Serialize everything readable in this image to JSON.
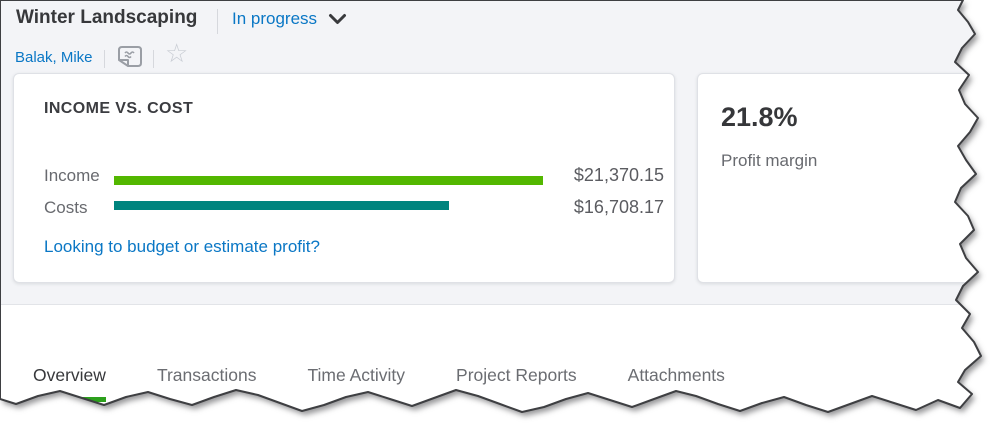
{
  "header": {
    "project_title": "Winter Landscaping",
    "status_label": "In progress",
    "customer_name": "Balak, Mike"
  },
  "income_cost_card": {
    "title": "INCOME VS. COST",
    "link_text": "Looking to budget or estimate profit?"
  },
  "profit_card": {
    "value": "21.8%",
    "label": "Profit margin"
  },
  "tabs": [
    {
      "label": "Overview",
      "active": true
    },
    {
      "label": "Transactions",
      "active": false
    },
    {
      "label": "Time Activity",
      "active": false
    },
    {
      "label": "Project Reports",
      "active": false
    },
    {
      "label": "Attachments",
      "active": false
    }
  ],
  "chart_data": {
    "type": "bar",
    "orientation": "horizontal",
    "title": "INCOME VS. COST",
    "categories": [
      "Income",
      "Costs"
    ],
    "values": [
      21370.15,
      16708.17
    ],
    "value_labels": [
      "$21,370.15",
      "$16,708.17"
    ],
    "series_colors": [
      "#53b700",
      "#00847e"
    ],
    "xlim": [
      0,
      21370.15
    ],
    "grid": false,
    "legend": false
  },
  "colors": {
    "accent_blue": "#0a77c5",
    "income_bar_green": "#53b700",
    "cost_bar_teal": "#00847e",
    "active_tab_underline": "#2ca01c",
    "text_dark": "#37383b",
    "text_gray": "#6b6d72",
    "page_background": "#f3f4f7"
  },
  "icons": [
    "chevron-down-icon",
    "note-icon",
    "star-icon"
  ]
}
